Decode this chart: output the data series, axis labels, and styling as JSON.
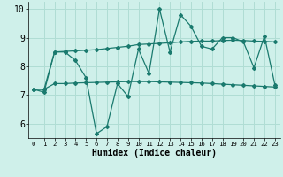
{
  "xlabel": "Humidex (Indice chaleur)",
  "ylabel": "",
  "xlim": [
    -0.5,
    23.5
  ],
  "ylim": [
    5.5,
    10.25
  ],
  "yticks": [
    6,
    7,
    8,
    9,
    10
  ],
  "xticks": [
    0,
    1,
    2,
    3,
    4,
    5,
    6,
    7,
    8,
    9,
    10,
    11,
    12,
    13,
    14,
    15,
    16,
    17,
    18,
    19,
    20,
    21,
    22,
    23
  ],
  "bg_color": "#cff0ea",
  "grid_color": "#b0ddd4",
  "line_color": "#1a7a6e",
  "line1": [
    7.2,
    7.1,
    8.5,
    8.5,
    8.2,
    7.6,
    5.65,
    5.9,
    7.4,
    6.95,
    8.6,
    7.75,
    10.0,
    8.5,
    9.8,
    9.4,
    8.7,
    8.6,
    9.0,
    9.0,
    8.85,
    7.95,
    9.05,
    7.35
  ],
  "line2": [
    7.2,
    7.2,
    8.5,
    8.52,
    8.54,
    8.56,
    8.58,
    8.62,
    8.66,
    8.7,
    8.76,
    8.78,
    8.8,
    8.82,
    8.85,
    8.87,
    8.88,
    8.88,
    8.9,
    8.91,
    8.9,
    8.88,
    8.87,
    8.85
  ],
  "line3": [
    7.2,
    7.2,
    7.4,
    7.4,
    7.42,
    7.43,
    7.44,
    7.45,
    7.46,
    7.47,
    7.47,
    7.47,
    7.46,
    7.45,
    7.44,
    7.43,
    7.42,
    7.4,
    7.38,
    7.36,
    7.34,
    7.32,
    7.3,
    7.28
  ]
}
